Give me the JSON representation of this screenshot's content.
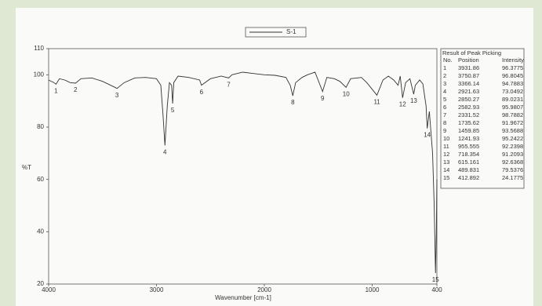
{
  "chart_data": {
    "type": "line",
    "x_label": "Wavenumber [cm-1]",
    "y_label": "%T",
    "xlim": [
      4000,
      400
    ],
    "ylim": [
      20,
      110
    ],
    "xticks": [
      4000,
      3000,
      2000,
      1000,
      400
    ],
    "yticks": [
      20,
      40,
      60,
      80,
      100,
      110
    ],
    "x": [
      4000,
      3950,
      3931.86,
      3900,
      3850,
      3800,
      3750.87,
      3700,
      3600,
      3500,
      3400,
      3366,
      3300,
      3200,
      3100,
      3000,
      2960,
      2940,
      2921.63,
      2900,
      2880,
      2860,
      2850,
      2840,
      2800,
      2700,
      2600,
      2583,
      2500,
      2400,
      2331,
      2300,
      2200,
      2100,
      2000,
      1900,
      1800,
      1760,
      1736,
      1710,
      1650,
      1600,
      1530,
      1460,
      1420,
      1350,
      1300,
      1242,
      1200,
      1100,
      1050,
      956,
      900,
      850,
      800,
      760,
      740,
      718,
      690,
      650,
      615,
      600,
      560,
      530,
      500,
      490,
      470,
      440,
      425,
      413,
      405,
      400
    ],
    "series": [
      {
        "name": "S-1",
        "color": "#333333",
        "values": [
          98,
          97,
          96.4,
          98.5,
          98,
          97,
          96.8,
          98.5,
          98.8,
          97.5,
          95.5,
          94.8,
          97,
          98.8,
          99,
          98.5,
          96,
          85,
          73,
          88,
          97,
          96,
          89,
          97,
          99.5,
          99,
          98,
          96,
          98.5,
          99.5,
          98.8,
          100,
          101,
          100.5,
          100,
          99.8,
          99,
          96,
          92,
          97,
          99,
          100,
          101,
          93.6,
          99,
          98.5,
          97.5,
          95.2,
          98.5,
          99,
          97,
          92.2,
          98,
          99.5,
          98,
          96,
          99.5,
          91.2,
          97,
          98.5,
          92.6,
          96,
          98,
          96.5,
          88,
          79.5,
          86,
          70,
          50,
          24.2,
          40,
          60
        ]
      }
    ]
  },
  "peak_table": {
    "title": "Result of Peak Picking",
    "columns": [
      "No.",
      "Position",
      "Intensity"
    ],
    "rows": [
      [
        1,
        3931.86,
        96.3775
      ],
      [
        2,
        3750.87,
        96.8045
      ],
      [
        3,
        3366.14,
        94.7883
      ],
      [
        4,
        2921.63,
        73.0492
      ],
      [
        5,
        2850.27,
        89.0231
      ],
      [
        6,
        2582.93,
        95.9807
      ],
      [
        7,
        2331.52,
        98.7882
      ],
      [
        8,
        1735.62,
        91.9672
      ],
      [
        9,
        1459.85,
        93.5688
      ],
      [
        10,
        1241.93,
        95.2422
      ],
      [
        11,
        955.555,
        92.2398
      ],
      [
        12,
        718.354,
        91.2093
      ],
      [
        13,
        615.161,
        92.6368
      ],
      [
        14,
        489.831,
        79.5376
      ],
      [
        15,
        412.892,
        24.1775
      ]
    ]
  }
}
